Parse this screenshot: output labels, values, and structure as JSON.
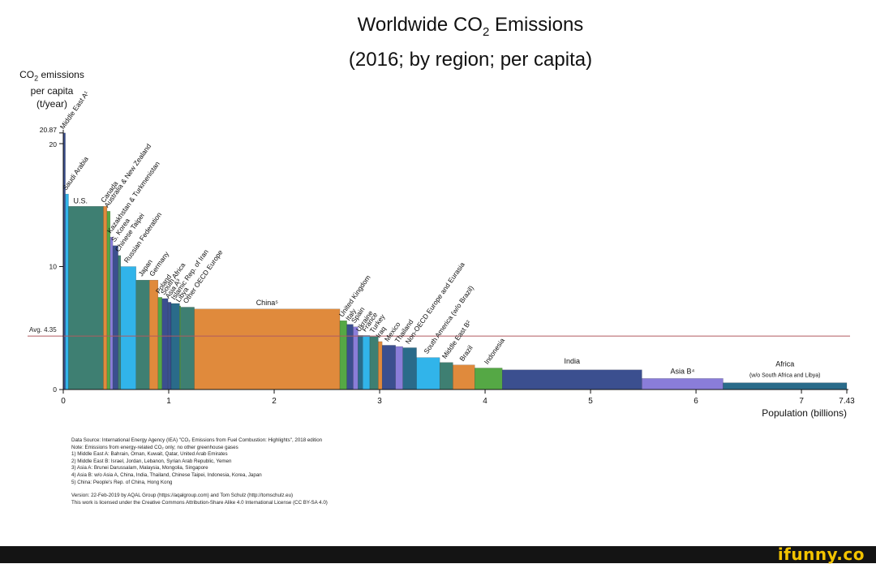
{
  "chart_data": {
    "type": "variable-width-bar",
    "title_line1": "Worldwide CO",
    "title_sub": "2",
    "title_line1_end": " Emissions",
    "title_line2": "(2016; by region; per capita)",
    "ylabel_line1": "CO",
    "ylabel_sub": "2",
    "ylabel_line1_end": " emissions",
    "ylabel_line2": "per capita",
    "ylabel_line3": "(t/year)",
    "xlabel": "Population (billions)",
    "xlim": [
      0,
      7.43
    ],
    "ylim": [
      0,
      22
    ],
    "x_ticks": [
      "0",
      "1",
      "2",
      "3",
      "4",
      "5",
      "6",
      "7",
      "7.43"
    ],
    "x_tick_values": [
      0,
      1,
      2,
      3,
      4,
      5,
      6,
      7,
      7.43
    ],
    "y_ticks": [
      "0",
      "10",
      "20",
      "20.87"
    ],
    "y_tick_values": [
      0,
      10,
      20,
      20.87
    ],
    "average": {
      "label": "Avg. 4.35",
      "value": 4.35,
      "color": "#b05a60"
    },
    "bars": [
      {
        "label": "Middle East A¹",
        "start": 0.0,
        "width": 0.02,
        "value": 20.87,
        "color": "#3b4f8f"
      },
      {
        "label": "Saudi Arabia",
        "start": 0.02,
        "width": 0.03,
        "value": 15.9,
        "color": "#31b4ea"
      },
      {
        "label": "U.S.",
        "start": 0.05,
        "width": 0.33,
        "value": 14.9,
        "color": "#3e7f72"
      },
      {
        "label": "Canada",
        "start": 0.38,
        "width": 0.035,
        "value": 14.9,
        "color": "#e08a3c"
      },
      {
        "label": "Australia & New Zealand",
        "start": 0.415,
        "width": 0.03,
        "value": 14.5,
        "color": "#55a845"
      },
      {
        "label": "Kazakhstan & Turkmenistan",
        "start": 0.445,
        "width": 0.025,
        "value": 12.4,
        "color": "#8a7dd9"
      },
      {
        "label": "S. Korea",
        "start": 0.47,
        "width": 0.05,
        "value": 11.7,
        "color": "#3b4f8f"
      },
      {
        "label": "Chinese Taipei",
        "start": 0.52,
        "width": 0.025,
        "value": 10.9,
        "color": "#3e7f72"
      },
      {
        "label": "Russian Federation",
        "start": 0.545,
        "width": 0.145,
        "value": 10.0,
        "color": "#31b4ea"
      },
      {
        "label": "Japan",
        "start": 0.69,
        "width": 0.127,
        "value": 8.9,
        "color": "#3e7f72"
      },
      {
        "label": "Germany",
        "start": 0.817,
        "width": 0.082,
        "value": 8.9,
        "color": "#e08a3c"
      },
      {
        "label": "Poland",
        "start": 0.899,
        "width": 0.038,
        "value": 7.5,
        "color": "#55a845"
      },
      {
        "label": "South Africa",
        "start": 0.937,
        "width": 0.056,
        "value": 7.4,
        "color": "#3b4f8f"
      },
      {
        "label": "Asia A³",
        "start": 0.993,
        "width": 0.03,
        "value": 7.1,
        "color": "#3b4f8f"
      },
      {
        "label": "Islamic Rep. of Iran",
        "start": 1.023,
        "width": 0.08,
        "value": 7.0,
        "color": "#2a6b8a"
      },
      {
        "label": "Libya",
        "start": 1.103,
        "width": 0.01,
        "value": 6.8,
        "color": "#55a845"
      },
      {
        "label": "Other OECD Europe",
        "start": 1.113,
        "width": 0.13,
        "value": 6.7,
        "color": "#3e7f72"
      },
      {
        "label": "China⁵",
        "start": 1.243,
        "width": 1.38,
        "value": 6.55,
        "color": "#e08a3c"
      },
      {
        "label": "United Kingdom",
        "start": 2.623,
        "width": 0.066,
        "value": 5.6,
        "color": "#55a845"
      },
      {
        "label": "Italy",
        "start": 2.689,
        "width": 0.06,
        "value": 5.3,
        "color": "#3b4f8f"
      },
      {
        "label": "Spain",
        "start": 2.749,
        "width": 0.046,
        "value": 5.1,
        "color": "#8a7dd9"
      },
      {
        "label": "Ukraine",
        "start": 2.795,
        "width": 0.045,
        "value": 4.4,
        "color": "#2a6b8a"
      },
      {
        "label": "France",
        "start": 2.84,
        "width": 0.067,
        "value": 4.4,
        "color": "#31b4ea"
      },
      {
        "label": "Turkey",
        "start": 2.907,
        "width": 0.08,
        "value": 4.3,
        "color": "#3e7f72"
      },
      {
        "label": "Iraq",
        "start": 2.987,
        "width": 0.037,
        "value": 3.9,
        "color": "#e08a3c"
      },
      {
        "label": "Mexico",
        "start": 3.024,
        "width": 0.127,
        "value": 3.6,
        "color": "#3b4f8f"
      },
      {
        "label": "Thailand",
        "start": 3.151,
        "width": 0.069,
        "value": 3.5,
        "color": "#8a7dd9"
      },
      {
        "label": "Non-OECD Europe and Eurasia",
        "start": 3.22,
        "width": 0.13,
        "value": 3.4,
        "color": "#2a6b8a"
      },
      {
        "label": "South America (w/o Brazil)",
        "start": 3.35,
        "width": 0.22,
        "value": 2.6,
        "color": "#31b4ea"
      },
      {
        "label": "Middle East B²",
        "start": 3.57,
        "width": 0.125,
        "value": 2.2,
        "color": "#3e7f72"
      },
      {
        "label": "Brazil",
        "start": 3.695,
        "width": 0.207,
        "value": 2.0,
        "color": "#e08a3c"
      },
      {
        "label": "Indonesia",
        "start": 3.902,
        "width": 0.261,
        "value": 1.75,
        "color": "#55a845"
      },
      {
        "label": "India",
        "start": 4.163,
        "width": 1.324,
        "value": 1.6,
        "color": "#3b4f8f"
      },
      {
        "label": "Asia B⁴",
        "start": 5.487,
        "width": 0.77,
        "value": 0.9,
        "color": "#8a7dd9"
      },
      {
        "label": "Africa",
        "start": 6.257,
        "width": 1.173,
        "value": 0.55,
        "color": "#2a6b8a"
      }
    ],
    "africa_note": "(w/o South Africa and Libya)",
    "grid": false
  },
  "notes": [
    "Data Source: International Energy Agency (IEA) \"CO₂ Emissions from Fuel Combustion: Highlights\", 2018 edition",
    "Note: Emissions from energy-related CO₂ only; no other greenhouse gases",
    "1) Middle East A: Bahrain, Oman, Kuwait, Qatar, United Arab Emirates",
    "2) Middle East B: Israel, Jordan, Lebanon, Syrian Arab Republic, Yemen",
    "3) Asia A: Brunei Darussalam, Malaysia, Mongolia, Singapore",
    "4) Asia B: w/o Asia A, China, India, Thailand, Chinese Taipei, Indonesia, Korea, Japan",
    "5) China: People's Rep. of China, Hong Kong"
  ],
  "version_lines": [
    "Version: 22-Feb-2019 by AQAL Group (https://aqalgroup.com) and Tom Schulz (http://tomschulz.eu)",
    "This work is licensed under the Creative Commons Attribution-Share Alike 4.0 International License (CC BY-SA 4.0)"
  ],
  "watermark": "ifunny.co"
}
